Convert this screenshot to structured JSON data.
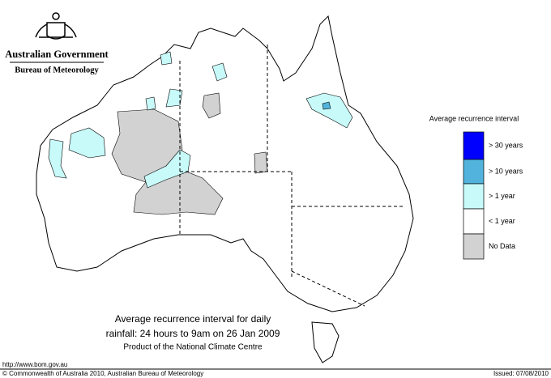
{
  "header": {
    "title": "Australian Government",
    "subtitle": "Bureau of Meteorology"
  },
  "legend": {
    "title": "Average recurrence interval",
    "items": [
      {
        "label": "> 30 years",
        "color": "#0000ff"
      },
      {
        "label": "> 10 years",
        "color": "#52b4dc"
      },
      {
        "label": "> 1 year",
        "color": "#c8fafa"
      },
      {
        "label": "< 1 year",
        "color": "#ffffff"
      },
      {
        "label": "No Data",
        "color": "#d2d2d2"
      }
    ]
  },
  "caption": {
    "line1": "Average recurrence interval for daily",
    "line2": "rainfall: 24 hours to 9am on 26 Jan 2009",
    "line3": "Product of the National Climate Centre"
  },
  "footer": {
    "url": "http://www.bom.gov.au",
    "copyright": "© Commonwealth of Australia 2010, Australian Bureau of Meteorology",
    "issued": "Issued: 07/08/2010"
  }
}
